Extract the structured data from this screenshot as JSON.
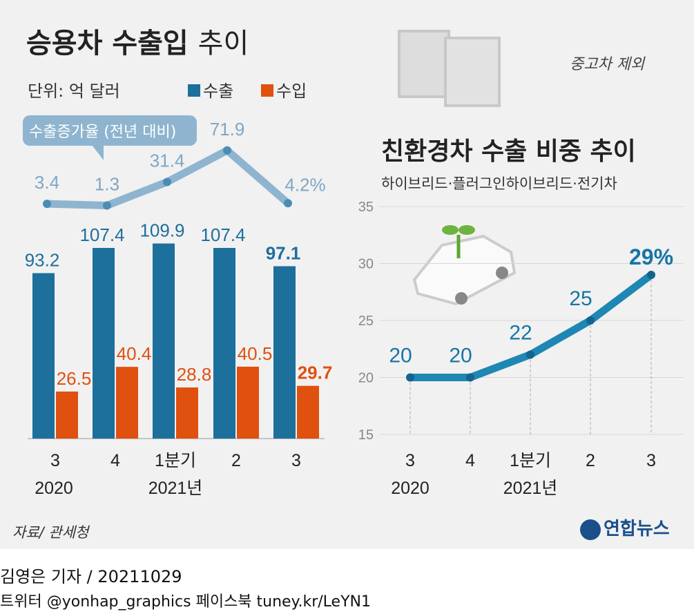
{
  "title_bold": "승용차 수출입",
  "title_light": "추이",
  "unit": "단위: 억 달러",
  "legend": [
    {
      "label": "수출",
      "color": "#1d6f9c"
    },
    {
      "label": "수입",
      "color": "#e0500f"
    }
  ],
  "note": "중고차 제외",
  "growth_callout": "수출증가율 (전년 대비)",
  "right_title": "친환경차 수출 비중 추이",
  "right_subtitle": "하이브리드·플러그인하이브리드·전기차",
  "source": "자료/ 관세청",
  "logo": "연합뉴스",
  "footer": {
    "byline": "김영은 기자 / 20211029",
    "social": "트위터 @yonhap_graphics  페이스북 tuney.kr/LeYN1"
  },
  "chart_data": [
    {
      "type": "bar",
      "title": "승용차 수출입 추이",
      "ylabel": "억 달러",
      "categories": [
        "3",
        "4",
        "1분기",
        "2",
        "3"
      ],
      "year_labels": [
        "2020",
        "2021년"
      ],
      "series": [
        {
          "name": "수출",
          "values": [
            93.2,
            107.4,
            109.9,
            107.4,
            97.1
          ],
          "labels": [
            "93.2",
            "107.4",
            "109.9",
            "107.4",
            "97.1"
          ]
        },
        {
          "name": "수입",
          "values": [
            26.5,
            40.4,
            28.8,
            40.5,
            29.7
          ],
          "labels": [
            "26.5",
            "40.4",
            "28.8",
            "40.5",
            "29.7"
          ]
        }
      ]
    },
    {
      "type": "line",
      "title": "수출증가율 (전년 대비)",
      "categories": [
        "3",
        "4",
        "1분기",
        "2",
        "3"
      ],
      "values": [
        3.4,
        1.3,
        31.4,
        71.9,
        4.2
      ],
      "labels": [
        "3.4",
        "1.3",
        "31.4",
        "71.9",
        "4.2%"
      ]
    },
    {
      "type": "line",
      "title": "친환경차 수출 비중 추이",
      "categories": [
        "3",
        "4",
        "1분기",
        "2",
        "3"
      ],
      "year_labels": [
        "2020",
        "2021년"
      ],
      "values": [
        20,
        20,
        22,
        25,
        29
      ],
      "labels": [
        "20",
        "20",
        "22",
        "25",
        "29%"
      ],
      "ylim": [
        15,
        35
      ],
      "yticks": [
        "15",
        "20",
        "25",
        "30",
        "35"
      ],
      "grid": true
    }
  ]
}
